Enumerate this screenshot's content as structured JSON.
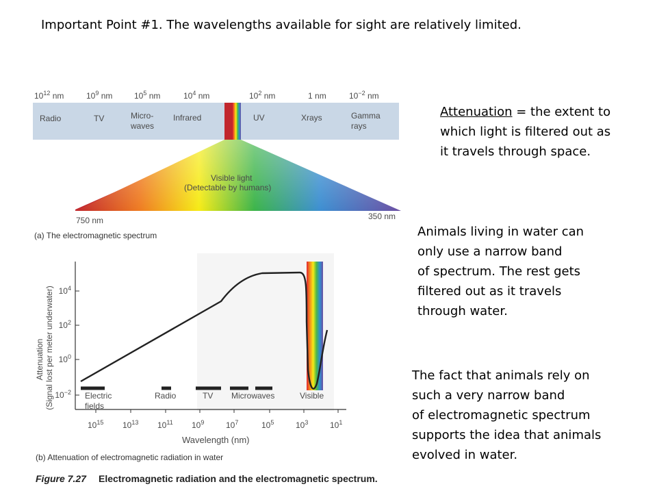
{
  "slide": {
    "title": "Important Point #1.  The wavelengths available for sight are relatively limited.",
    "attenuation_term": "Attenuation",
    "attenuation_def": " = the extent to\nwhich light is filtered out as\nit travels through space.",
    "water_note": "Animals living in water can\nonly use a narrow band\nof spectrum.  The rest gets\nfiltered out as it travels\nthrough water.",
    "evolution_note": "The fact that animals rely on\nsuch a very narrow band\nof electromagnetic spectrum\nsupports the idea that animals\nevolved in water."
  },
  "figure_a": {
    "wavelengths": [
      {
        "base": "10",
        "exp": "12",
        "unit": " nm"
      },
      {
        "base": "10",
        "exp": "9",
        "unit": " nm"
      },
      {
        "base": "10",
        "exp": "5",
        "unit": " nm"
      },
      {
        "base": "10",
        "exp": "4",
        "unit": " nm"
      },
      {
        "base": "10",
        "exp": "2",
        "unit": " nm"
      },
      {
        "base": "1",
        "exp": "",
        "unit": " nm"
      },
      {
        "base": "10",
        "exp": "−2",
        "unit": " nm"
      }
    ],
    "bands": [
      "Radio",
      "TV",
      "Micro-",
      "waves",
      "Infrared",
      "UV",
      "Xrays",
      "Gamma",
      "rays"
    ],
    "visible_label_1": "Visible light",
    "visible_label_2": "(Detectable by humans)",
    "left_nm": "750 nm",
    "right_nm": "350 nm",
    "caption": "(a) The electromagnetic spectrum"
  },
  "figure_b": {
    "ylabel_1": "Attenuation",
    "ylabel_2": "(Signal lost per meter underwater)",
    "y_ticks": [
      {
        "base": "10",
        "exp": "4"
      },
      {
        "base": "10",
        "exp": "2"
      },
      {
        "base": "10",
        "exp": "0"
      },
      {
        "base": "10",
        "exp": "−2"
      }
    ],
    "x_ticks": [
      {
        "base": "10",
        "exp": "15"
      },
      {
        "base": "10",
        "exp": "13"
      },
      {
        "base": "10",
        "exp": "11"
      },
      {
        "base": "10",
        "exp": "9"
      },
      {
        "base": "10",
        "exp": "7"
      },
      {
        "base": "10",
        "exp": "5"
      },
      {
        "base": "10",
        "exp": "3"
      },
      {
        "base": "10",
        "exp": "1"
      }
    ],
    "xlabel": "Wavelength (nm)",
    "band_labels": [
      "Electric",
      "fields",
      "Radio",
      "TV",
      "Microwaves",
      "Visible"
    ],
    "caption": "(b) Attenuation of electromagnetic radiation in water"
  },
  "figure_title": {
    "number": "Figure 7.27",
    "text": "Electromagnetic radiation and the electromagnetic spectrum."
  },
  "colors": {
    "band_fill": "#c9d7e6",
    "curve": "#222222",
    "ir": "#c1272d",
    "visible": [
      "#e3262f",
      "#f28a1e",
      "#f6eb16",
      "#4cb748",
      "#2e8fd0",
      "#6b4fa2"
    ]
  }
}
